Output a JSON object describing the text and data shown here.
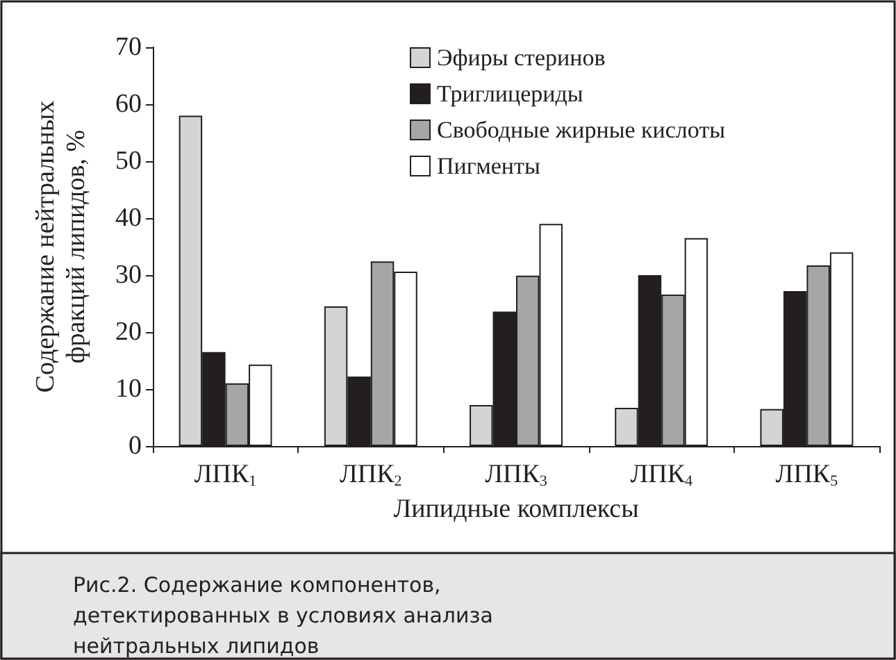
{
  "chart_data": {
    "type": "bar",
    "xlabel": "Липидные комплексы",
    "ylabel": "Содержание нейтральных\nфракций липидов, %",
    "categories": [
      "ЛПК$_{1}$",
      "ЛПК$_{2}$",
      "ЛПК$_{3}$",
      "ЛПК$_{4}$",
      "ЛПК$_{5}$"
    ],
    "series": [
      {
        "name": "Эфиры стеринов",
        "color": "#d4d4d4",
        "values": [
          58,
          24.5,
          7.2,
          6.7,
          6.5
        ]
      },
      {
        "name": "Триглицериды",
        "color": "#231f20",
        "values": [
          16.5,
          12.2,
          23.6,
          30,
          27.2
        ]
      },
      {
        "name": "Свободные жирные кислоты",
        "color": "#a6a6a8",
        "values": [
          11,
          32.4,
          29.9,
          26.6,
          31.7
        ]
      },
      {
        "name": "Пигменты",
        "color": "#ffffff",
        "values": [
          14.3,
          30.6,
          39,
          36.5,
          34
        ]
      }
    ],
    "ylim": [
      0,
      70
    ],
    "yticks": [
      0,
      10,
      20,
      30,
      40,
      50,
      60,
      70
    ],
    "grid": false,
    "legend": "top right",
    "annotations": [
      "Рис.2. Содержание компонентов, детектированных в условиях анализа нейтральных липидов"
    ]
  }
}
